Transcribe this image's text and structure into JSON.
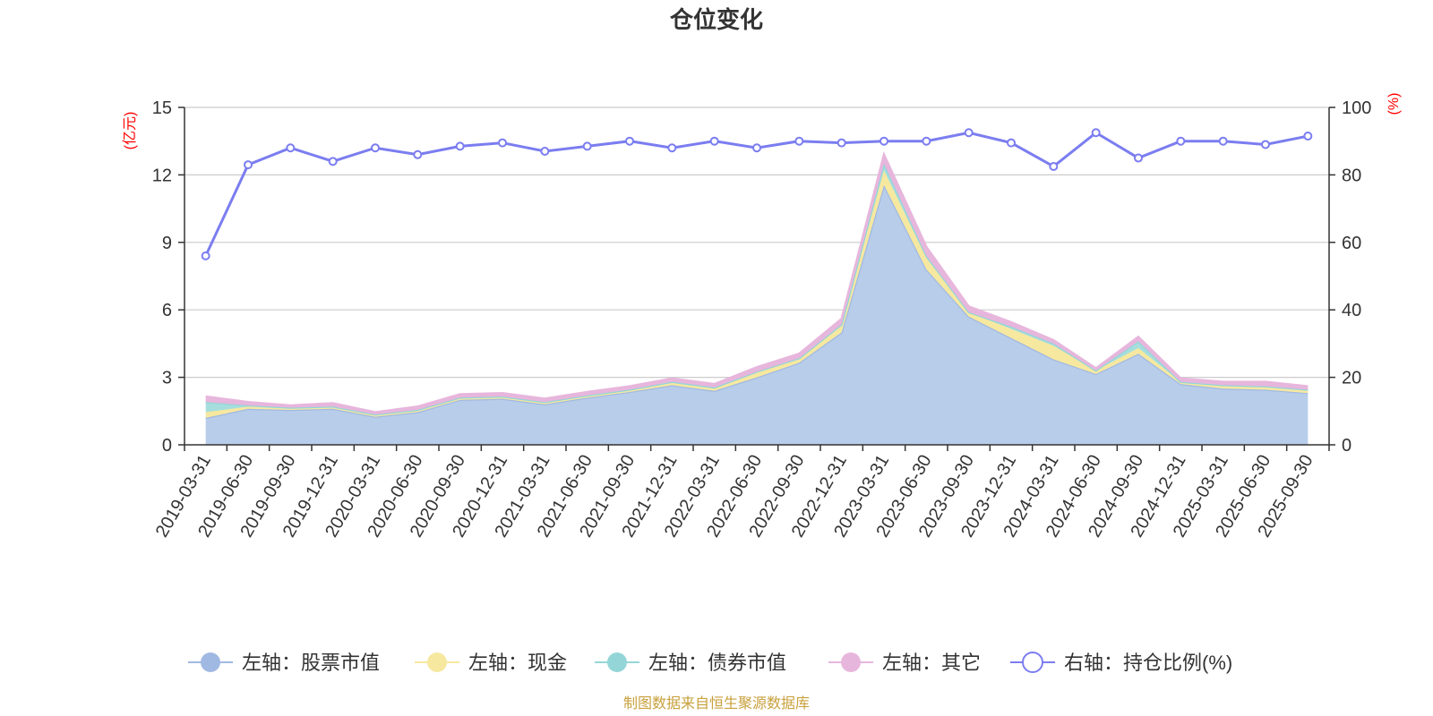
{
  "chart_data": {
    "type": "area",
    "title": "仓位变化",
    "source": "制图数据来自恒生聚源数据库",
    "left_axis": {
      "unit": "(亿元)",
      "ticks": [
        "0",
        "3",
        "6",
        "9",
        "12",
        "15"
      ],
      "range": [
        0,
        15
      ]
    },
    "right_axis": {
      "unit": "(%)",
      "ticks": [
        "0",
        "20",
        "40",
        "60",
        "80",
        "100"
      ],
      "range": [
        0,
        100
      ]
    },
    "categories": [
      "2019-03-31",
      "2019-06-30",
      "2019-09-30",
      "2019-12-31",
      "2020-03-31",
      "2020-06-30",
      "2020-09-30",
      "2020-12-31",
      "2021-03-31",
      "2021-06-30",
      "2021-09-30",
      "2021-12-31",
      "2022-03-31",
      "2022-06-30",
      "2022-09-30",
      "2022-12-31",
      "2023-03-31",
      "2023-06-30",
      "2023-09-30",
      "2023-12-31",
      "2024-03-31",
      "2024-06-30",
      "2024-09-30",
      "2024-12-31",
      "2025-03-31",
      "2025-06-30",
      "2025-09-30"
    ],
    "series": [
      {
        "name": "左轴：股票市值",
        "color": "#a0b9e2",
        "fill": "#b8cdea",
        "values": [
          1.2,
          1.6,
          1.55,
          1.6,
          1.25,
          1.45,
          2.0,
          2.05,
          1.8,
          2.1,
          2.35,
          2.65,
          2.4,
          3.0,
          3.65,
          5.0,
          11.55,
          7.8,
          5.7,
          4.75,
          3.8,
          3.15,
          4.05,
          2.7,
          2.5,
          2.45,
          2.3
        ]
      },
      {
        "name": "左轴：现金",
        "color": "#f7e8a0",
        "fill": "#f7e8a0",
        "values": [
          0.25,
          0.1,
          0.1,
          0.1,
          0.1,
          0.1,
          0.1,
          0.1,
          0.1,
          0.1,
          0.1,
          0.15,
          0.15,
          0.25,
          0.2,
          0.35,
          0.65,
          0.5,
          0.2,
          0.4,
          0.6,
          0.15,
          0.25,
          0.1,
          0.15,
          0.15,
          0.15
        ]
      },
      {
        "name": "左轴：债券市值",
        "color": "#94d6d8",
        "fill": "#a6dede",
        "values": [
          0.45,
          0.05,
          0.0,
          0.0,
          0.0,
          0.0,
          0.0,
          0.0,
          0.0,
          0.0,
          0.0,
          0.0,
          0.0,
          0.0,
          0.0,
          0.0,
          0.3,
          0.1,
          0.0,
          0.1,
          0.1,
          0.0,
          0.3,
          0.0,
          0.0,
          0.0,
          0.0
        ]
      },
      {
        "name": "左轴：其它",
        "color": "#e7b6dc",
        "fill": "#e7b6dc",
        "values": [
          0.25,
          0.15,
          0.1,
          0.15,
          0.1,
          0.15,
          0.15,
          0.15,
          0.15,
          0.15,
          0.15,
          0.15,
          0.15,
          0.2,
          0.2,
          0.25,
          0.4,
          0.4,
          0.25,
          0.2,
          0.15,
          0.1,
          0.2,
          0.15,
          0.15,
          0.2,
          0.15
        ]
      }
    ],
    "line_series": {
      "name": "右轴：持仓比例(%)",
      "color": "#7b7df0",
      "values": [
        56,
        83,
        88,
        84,
        88,
        86,
        88.5,
        89.5,
        87,
        88.5,
        90,
        88,
        90,
        88,
        90,
        89.5,
        90,
        90,
        92.5,
        89.5,
        82.5,
        92.5,
        85,
        90,
        90,
        89,
        91.5
      ]
    },
    "legend_position": "bottom-center"
  }
}
